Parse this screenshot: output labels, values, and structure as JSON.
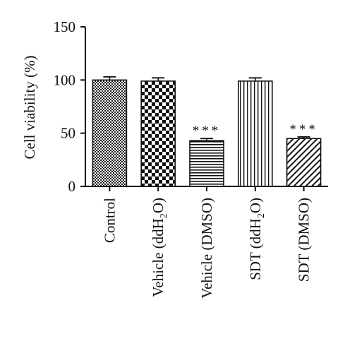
{
  "chart_data": {
    "type": "bar",
    "ylabel": "Cell viability (%)",
    "ylim": [
      0,
      150
    ],
    "yticks": [
      0,
      50,
      100,
      150
    ],
    "categories": [
      {
        "label": "Control",
        "sub": "",
        "tail": ""
      },
      {
        "label": "Vehicle (ddH",
        "sub": "2",
        "tail": "O)"
      },
      {
        "label": "Vehicle (DMSO)",
        "sub": "",
        "tail": ""
      },
      {
        "label": "SDT (ddH",
        "sub": "2",
        "tail": "O)"
      },
      {
        "label": "SDT (DMSO)",
        "sub": "",
        "tail": ""
      }
    ],
    "values": [
      100,
      99,
      43,
      99,
      45
    ],
    "errors": [
      3,
      3,
      2,
      3,
      1.5
    ],
    "significance": [
      "",
      "",
      "***",
      "",
      "***"
    ],
    "patterns": [
      "fine-crosshatch",
      "checkerboard",
      "horizontal-lines",
      "vertical-lines",
      "diagonal-lines"
    ],
    "grid": false,
    "legend": "none"
  }
}
